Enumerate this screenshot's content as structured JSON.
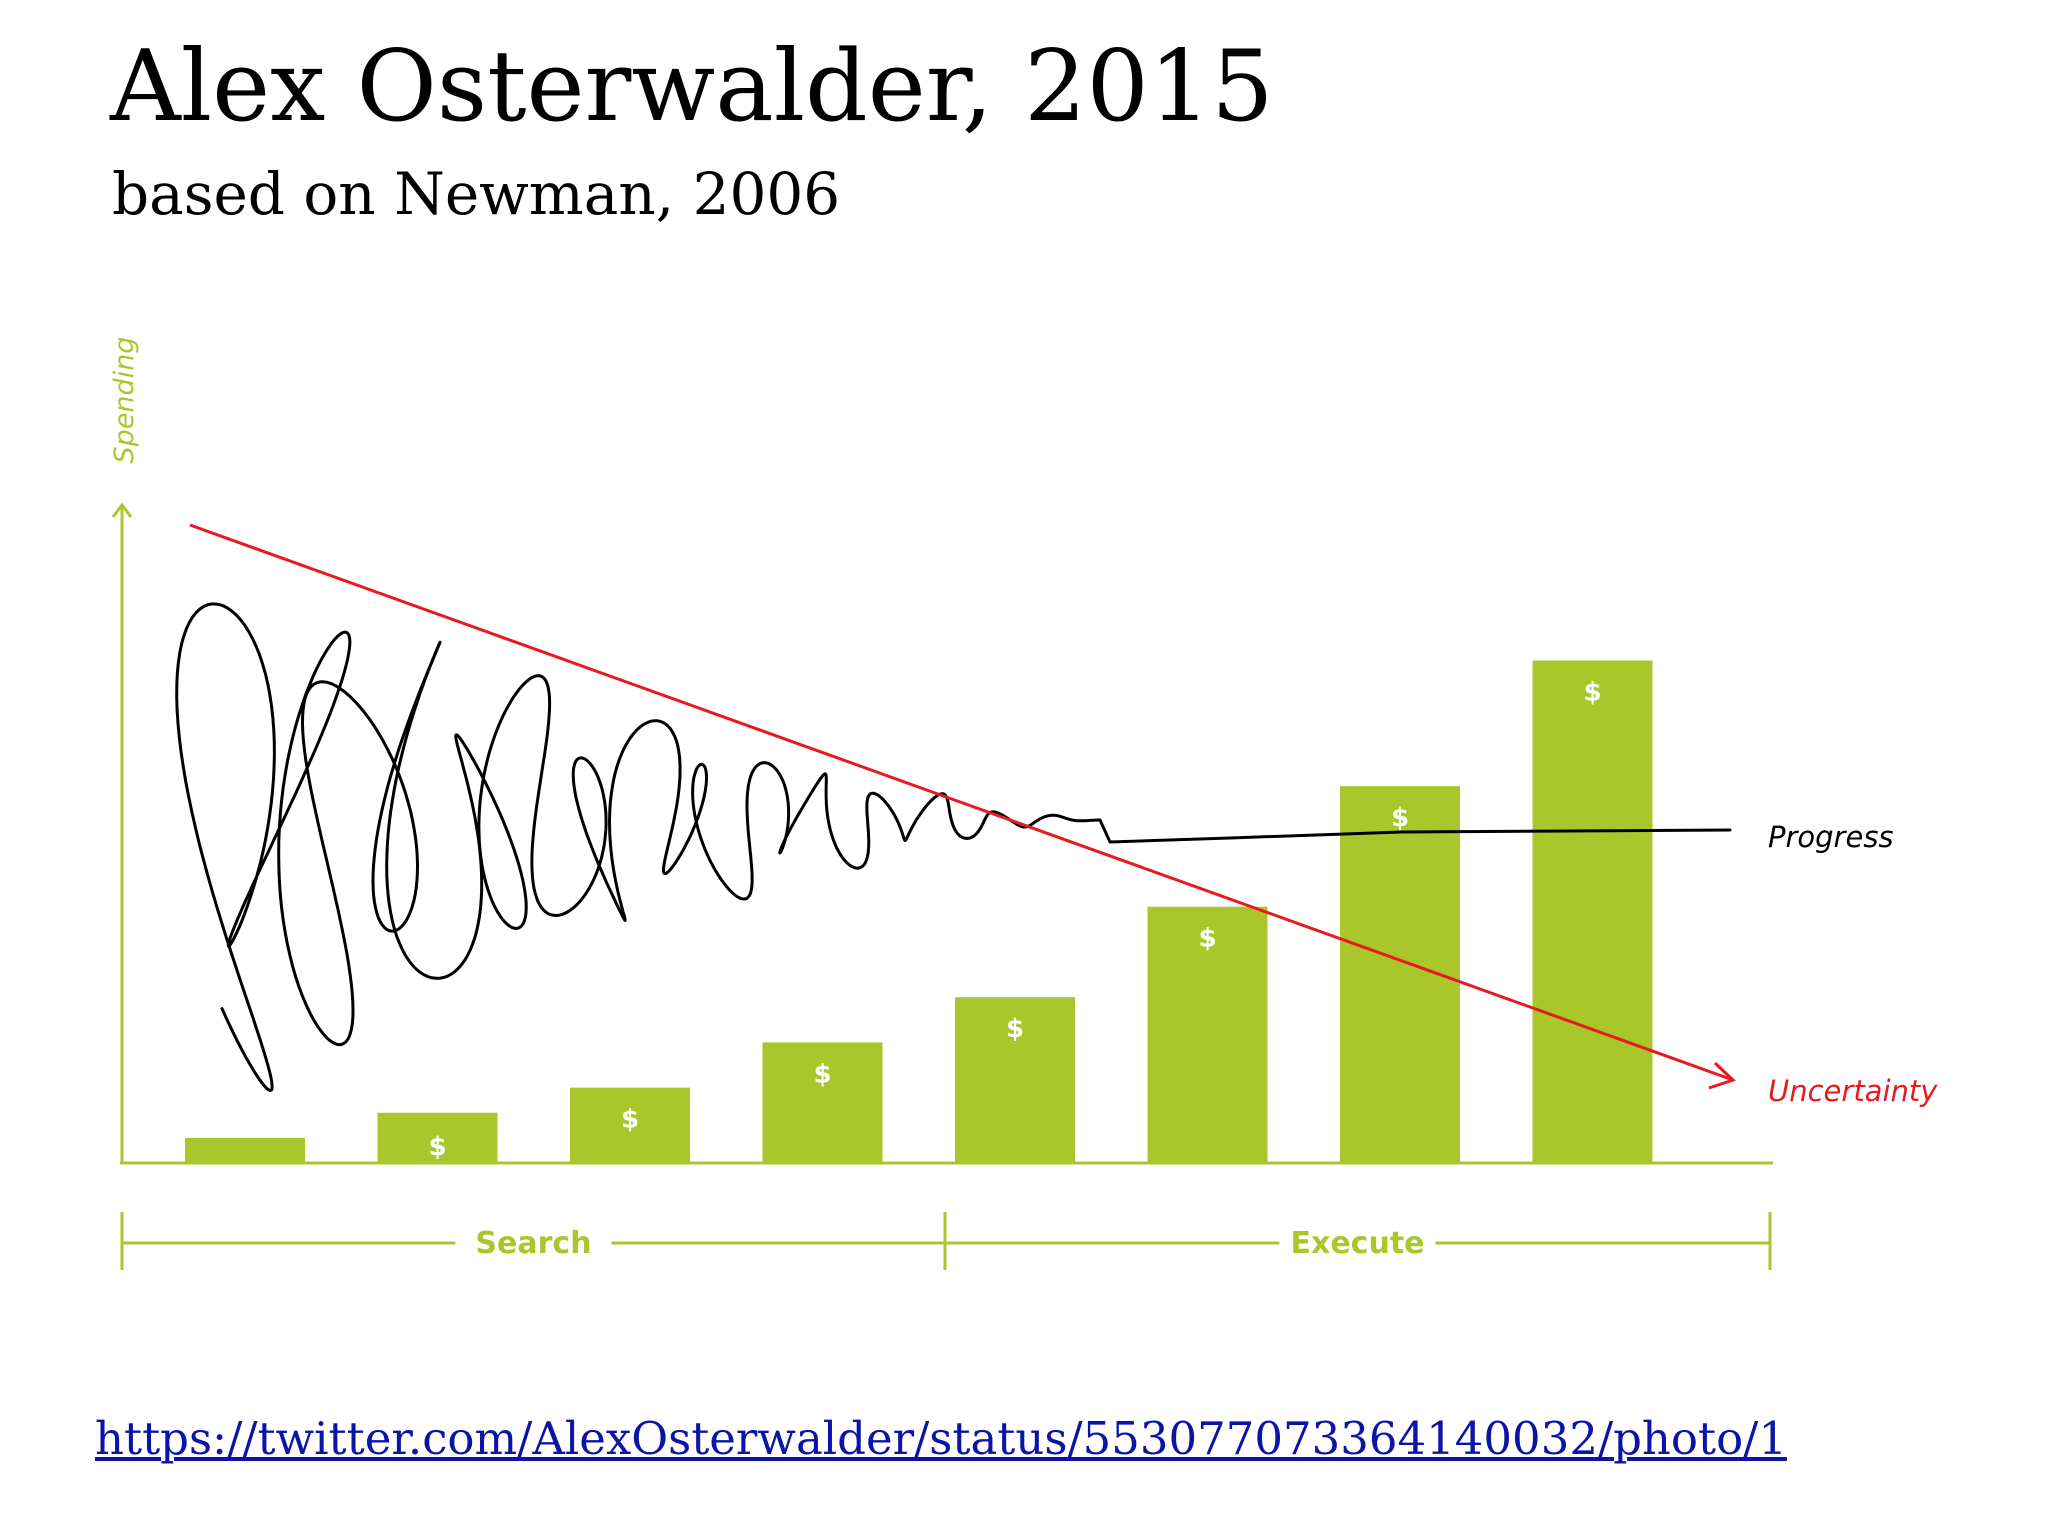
{
  "slide": {
    "title": "Alex Osterwalder, 2015",
    "subtitle": "based on Newman, 2006",
    "source_url": "https://twitter.com/AlexOsterwalder/status/553077073364140032/photo/1"
  },
  "colors": {
    "bar": "#a9c72b",
    "axis": "#a9c72b",
    "uncertainty": "#e8191f",
    "progress": "#000000",
    "link": "#0b14a6"
  },
  "chart_data": {
    "type": "bar",
    "ylabel": "Spending",
    "categories": [
      "",
      "",
      "",
      "",
      "",
      "",
      "",
      ""
    ],
    "values": [
      5,
      10,
      15,
      24,
      33,
      51,
      75,
      100
    ],
    "bar_symbols": [
      "",
      "$",
      "$",
      "$",
      "$",
      "$",
      "$",
      "$"
    ],
    "phases": [
      {
        "label": "Search",
        "from_bar": 0,
        "to_bar": 3
      },
      {
        "label": "Execute",
        "from_bar": 4,
        "to_bar": 7
      }
    ],
    "overlays": [
      {
        "name": "Progress",
        "type": "line",
        "description": "chaotic scribble that settles into a flat line"
      },
      {
        "name": "Uncertainty",
        "type": "line",
        "direction": "decreasing"
      }
    ],
    "ylim": [
      0,
      120
    ],
    "grid": false,
    "legend": "none"
  }
}
